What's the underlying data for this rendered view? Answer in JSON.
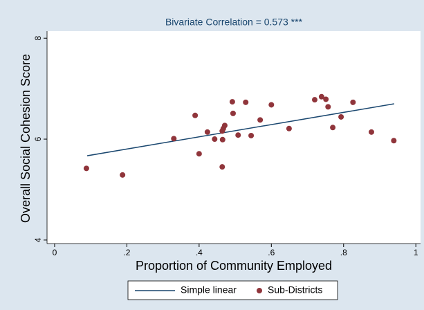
{
  "chart_data": {
    "type": "scatter",
    "title": "Bivariate Correlation = 0.573 ***",
    "x_label": "Proportion of Community Employed",
    "y_label": "Overall Social Cohesion Score",
    "xlim": [
      -0.021,
      1.013
    ],
    "ylim": [
      3.93,
      8.14
    ],
    "xticks": [
      0,
      {
        "value": 0.2,
        "label": ".2"
      },
      {
        "value": 0.4,
        "label": ".4"
      },
      {
        "value": 0.6,
        "label": ".6"
      },
      {
        "value": 0.8,
        "label": ".8"
      },
      1
    ],
    "yticks": [
      4,
      6,
      8
    ],
    "grid": false,
    "legend": "bottom",
    "series": [
      {
        "name": "Simple linear",
        "type": "line",
        "color": "#1a476f",
        "x": [
          0.09,
          0.94
        ],
        "values": [
          5.67,
          6.7
        ]
      },
      {
        "name": "Sub-Districts",
        "type": "scatter",
        "color": "#90353b",
        "x": [
          0.088,
          0.188,
          0.33,
          0.389,
          0.4,
          0.423,
          0.443,
          0.464,
          0.464,
          0.465,
          0.467,
          0.471,
          0.492,
          0.494,
          0.508,
          0.529,
          0.544,
          0.569,
          0.6,
          0.649,
          0.72,
          0.739,
          0.751,
          0.757,
          0.77,
          0.793,
          0.826,
          0.877,
          0.939
        ],
        "values": [
          5.42,
          5.29,
          6.01,
          6.47,
          5.71,
          6.14,
          6.0,
          6.16,
          5.45,
          5.99,
          6.21,
          6.27,
          6.74,
          6.51,
          6.08,
          6.73,
          6.07,
          6.38,
          6.68,
          6.21,
          6.78,
          6.84,
          6.79,
          6.64,
          6.23,
          6.44,
          6.73,
          6.14,
          5.97
        ]
      }
    ]
  }
}
